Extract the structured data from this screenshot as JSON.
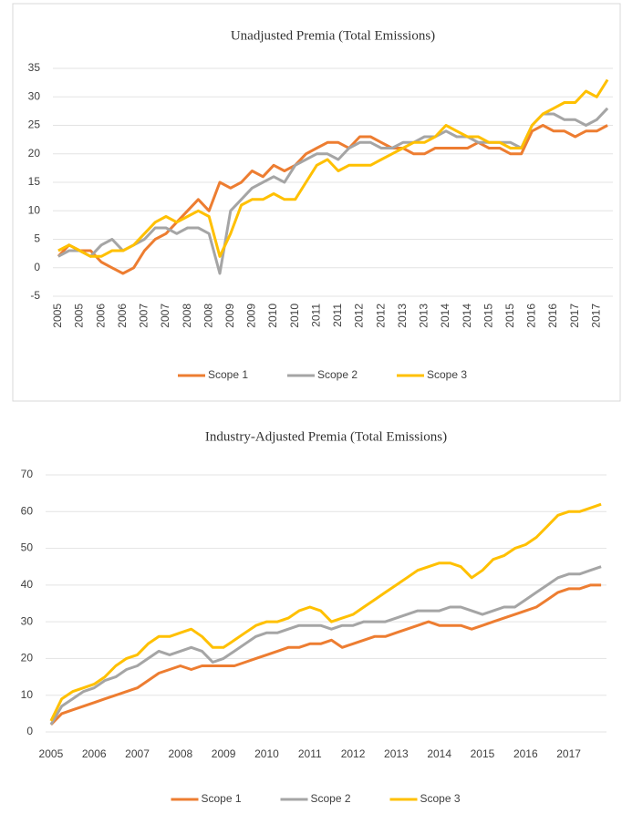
{
  "chart_data": [
    {
      "type": "line",
      "title": "Unadjusted Premia (Total Emissions)",
      "categories": [
        "2005",
        null,
        "2005",
        null,
        "2006",
        null,
        "2006",
        null,
        "2007",
        null,
        "2007",
        null,
        "2008",
        null,
        "2008",
        null,
        "2009",
        null,
        "2009",
        null,
        "2010",
        null,
        "2010",
        null,
        "2011",
        null,
        "2011",
        null,
        "2012",
        null,
        "2012",
        null,
        "2013",
        null,
        "2013",
        null,
        "2014",
        null,
        "2014",
        null,
        "2015",
        null,
        "2015",
        null,
        "2016",
        null,
        "2016",
        null,
        "2017",
        null,
        "2017",
        null
      ],
      "series": [
        {
          "name": "Scope 1",
          "color": "#ed7d31",
          "values": [
            2,
            4,
            3,
            3,
            1,
            0,
            -1,
            0,
            3,
            5,
            6,
            8,
            10,
            12,
            10,
            15,
            14,
            15,
            17,
            16,
            18,
            17,
            18,
            20,
            21,
            22,
            22,
            21,
            23,
            23,
            22,
            21,
            21,
            20,
            20,
            21,
            21,
            21,
            21,
            22,
            21,
            21,
            20,
            20,
            24,
            25,
            24,
            24,
            23,
            24,
            24,
            25
          ]
        },
        {
          "name": "Scope 2",
          "color": "#a5a5a5",
          "values": [
            2,
            3,
            3,
            2,
            4,
            5,
            3,
            4,
            5,
            7,
            7,
            6,
            7,
            7,
            6,
            -1,
            10,
            12,
            14,
            15,
            16,
            15,
            18,
            19,
            20,
            20,
            19,
            21,
            22,
            22,
            21,
            21,
            22,
            22,
            23,
            23,
            24,
            23,
            23,
            22,
            22,
            22,
            22,
            21,
            25,
            27,
            27,
            26,
            26,
            25,
            26,
            28
          ]
        },
        {
          "name": "Scope 3",
          "color": "#ffc000",
          "values": [
            3,
            4,
            3,
            2,
            2,
            3,
            3,
            4,
            6,
            8,
            9,
            8,
            9,
            10,
            9,
            2,
            6,
            11,
            12,
            12,
            13,
            12,
            12,
            15,
            18,
            19,
            17,
            18,
            18,
            18,
            19,
            20,
            21,
            22,
            22,
            23,
            25,
            24,
            23,
            23,
            22,
            22,
            21,
            21,
            25,
            27,
            28,
            29,
            29,
            31,
            30,
            33
          ]
        }
      ],
      "ylim": [
        -5,
        35
      ],
      "yticks": [
        -5,
        0,
        5,
        10,
        15,
        20,
        25,
        30,
        35
      ],
      "grid": true
    },
    {
      "type": "line",
      "title": "Industry-Adjusted Premia (Total Emissions)",
      "categories": [
        "2005",
        null,
        null,
        null,
        "2006",
        null,
        null,
        null,
        "2007",
        null,
        null,
        null,
        "2008",
        null,
        null,
        null,
        "2009",
        null,
        null,
        null,
        "2010",
        null,
        null,
        null,
        "2011",
        null,
        null,
        null,
        "2012",
        null,
        null,
        null,
        "2013",
        null,
        null,
        null,
        "2014",
        null,
        null,
        null,
        "2015",
        null,
        null,
        null,
        "2016",
        null,
        null,
        null,
        "2017",
        null,
        null,
        null
      ],
      "series": [
        {
          "name": "Scope 1",
          "color": "#ed7d31",
          "values": [
            2,
            5,
            6,
            7,
            8,
            9,
            10,
            11,
            12,
            14,
            16,
            17,
            18,
            17,
            18,
            18,
            18,
            18,
            19,
            20,
            21,
            22,
            23,
            23,
            24,
            24,
            25,
            23,
            24,
            25,
            26,
            26,
            27,
            28,
            29,
            30,
            29,
            29,
            29,
            28,
            29,
            30,
            31,
            32,
            33,
            34,
            36,
            38,
            39,
            39,
            40,
            40
          ]
        },
        {
          "name": "Scope 2",
          "color": "#a5a5a5",
          "values": [
            2,
            7,
            9,
            11,
            12,
            14,
            15,
            17,
            18,
            20,
            22,
            21,
            22,
            23,
            22,
            19,
            20,
            22,
            24,
            26,
            27,
            27,
            28,
            29,
            29,
            29,
            28,
            29,
            29,
            30,
            30,
            30,
            31,
            32,
            33,
            33,
            33,
            34,
            34,
            33,
            32,
            33,
            34,
            34,
            36,
            38,
            40,
            42,
            43,
            43,
            44,
            45
          ]
        },
        {
          "name": "Scope 3",
          "color": "#ffc000",
          "values": [
            3,
            9,
            11,
            12,
            13,
            15,
            18,
            20,
            21,
            24,
            26,
            26,
            27,
            28,
            26,
            23,
            23,
            25,
            27,
            29,
            30,
            30,
            31,
            33,
            34,
            33,
            30,
            31,
            32,
            34,
            36,
            38,
            40,
            42,
            44,
            45,
            46,
            46,
            45,
            42,
            44,
            47,
            48,
            50,
            51,
            53,
            56,
            59,
            60,
            60,
            61,
            62
          ]
        }
      ],
      "ylim": [
        0,
        70
      ],
      "yticks": [
        0,
        10,
        20,
        30,
        40,
        50,
        60,
        70
      ],
      "grid": true
    }
  ]
}
